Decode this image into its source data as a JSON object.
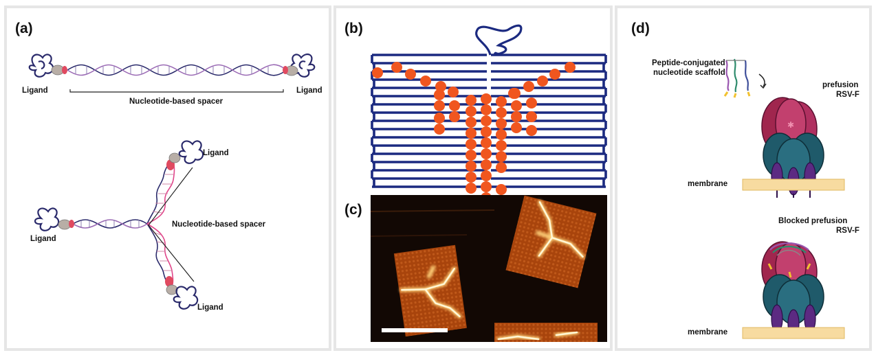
{
  "panels": {
    "a": {
      "label": "(a)",
      "ligand": "Ligand",
      "spacer_top": "Nucleotide-based spacer",
      "spacer_bottom": "Nucleotide-based spacer"
    },
    "b": {
      "label": "(b)"
    },
    "c": {
      "label": "(c)"
    },
    "d": {
      "label": "(d)",
      "scaffold_line1": "Peptide-conjugated",
      "scaffold_line2": "nucleotide scaffold",
      "prefusion_line1": "prefusion",
      "prefusion_line2": "RSV-F",
      "blocked_line1": "Blocked prefusion",
      "blocked_line2": "RSV-F",
      "membrane": "membrane"
    }
  },
  "colors": {
    "dna_navy": "#2a2a6b",
    "dna_purple": "#8e5aa8",
    "dna_pink": "#e0468a",
    "origami_blue": "#1b2a80",
    "staple_orange": "#f0561f",
    "rsv_crimson": "#a0264e",
    "rsv_teal": "#1f5a6a",
    "rsv_purple": "#5c2a82",
    "membrane": "#f7dba0"
  }
}
